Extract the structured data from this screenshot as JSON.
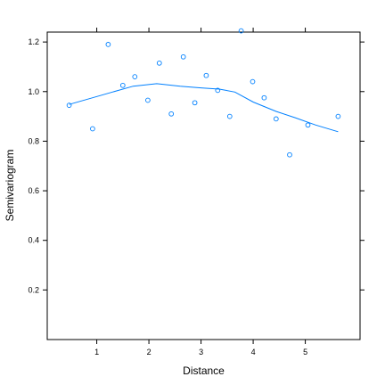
{
  "chart_data": {
    "type": "scatter",
    "xlabel": "Distance",
    "ylabel": "Semivariogram",
    "xlim": [
      0.05,
      6.05
    ],
    "ylim": [
      0.0,
      1.24
    ],
    "xticks": [
      1,
      2,
      3,
      4,
      5
    ],
    "xtick_labels": [
      "1",
      "2",
      "3",
      "4",
      "5"
    ],
    "yticks": [
      0.2,
      0.4,
      0.6,
      0.8,
      1.0,
      1.2
    ],
    "ytick_labels": [
      "0.2",
      "0.4",
      "0.6",
      "0.8",
      "1.0",
      "1.2"
    ],
    "grid": false,
    "colors": {
      "points": "#0080ff",
      "smooth": "#0080ff",
      "axis": "#000000"
    },
    "points": {
      "x": [
        0.47,
        0.92,
        1.22,
        1.5,
        1.73,
        1.98,
        2.2,
        2.43,
        2.66,
        2.88,
        3.1,
        3.32,
        3.55,
        3.77,
        3.99,
        4.21,
        4.44,
        4.7,
        5.05,
        5.63
      ],
      "y": [
        0.945,
        0.85,
        1.19,
        1.025,
        1.06,
        0.965,
        1.115,
        0.91,
        1.14,
        0.955,
        1.065,
        1.005,
        0.9,
        1.245,
        1.04,
        0.975,
        0.89,
        0.745,
        0.865,
        0.9
      ]
    },
    "smooth": {
      "x": [
        0.47,
        0.92,
        1.3,
        1.7,
        2.15,
        2.6,
        3.0,
        3.35,
        3.65,
        4.0,
        4.44,
        4.8,
        5.2,
        5.63
      ],
      "y": [
        0.948,
        0.975,
        0.998,
        1.022,
        1.032,
        1.022,
        1.015,
        1.01,
        0.998,
        0.958,
        0.92,
        0.895,
        0.865,
        0.838
      ]
    }
  }
}
